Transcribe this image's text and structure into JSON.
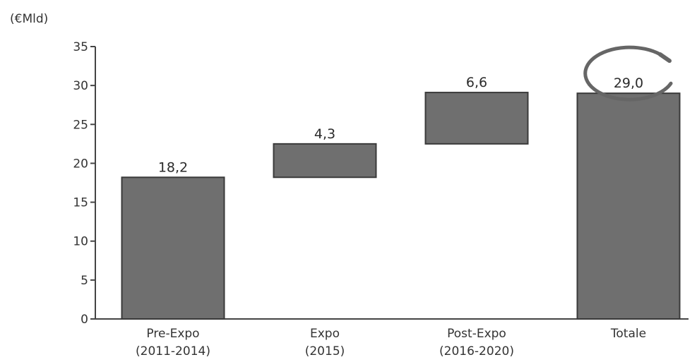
{
  "chart_data": {
    "type": "bar",
    "subtype": "waterfall",
    "unit_label": "(€Mld)",
    "categories": [
      {
        "line1": "Pre-Expo",
        "line2": "(2011-2014)"
      },
      {
        "line1": "Expo",
        "line2": "(2015)"
      },
      {
        "line1": "Post-Expo",
        "line2": "(2016-2020)"
      },
      {
        "line1": "Totale",
        "line2": ""
      }
    ],
    "values": [
      18.2,
      4.3,
      6.6,
      29.0
    ],
    "value_labels": [
      "18,2",
      "4,3",
      "6,6",
      "29,0"
    ],
    "bar_start": [
      0,
      18.2,
      22.5,
      0
    ],
    "ylim": [
      0,
      35
    ],
    "yticks": [
      "0",
      "5",
      "10",
      "15",
      "20",
      "25",
      "30",
      "35"
    ],
    "grid": false,
    "highlight": {
      "category": "Totale",
      "shape": "circle"
    },
    "colors": {
      "bar_fill": "#6f6f6f",
      "bar_stroke": "#3a3a3a",
      "axis": "#444444",
      "highlight_stroke": "#666666"
    }
  }
}
